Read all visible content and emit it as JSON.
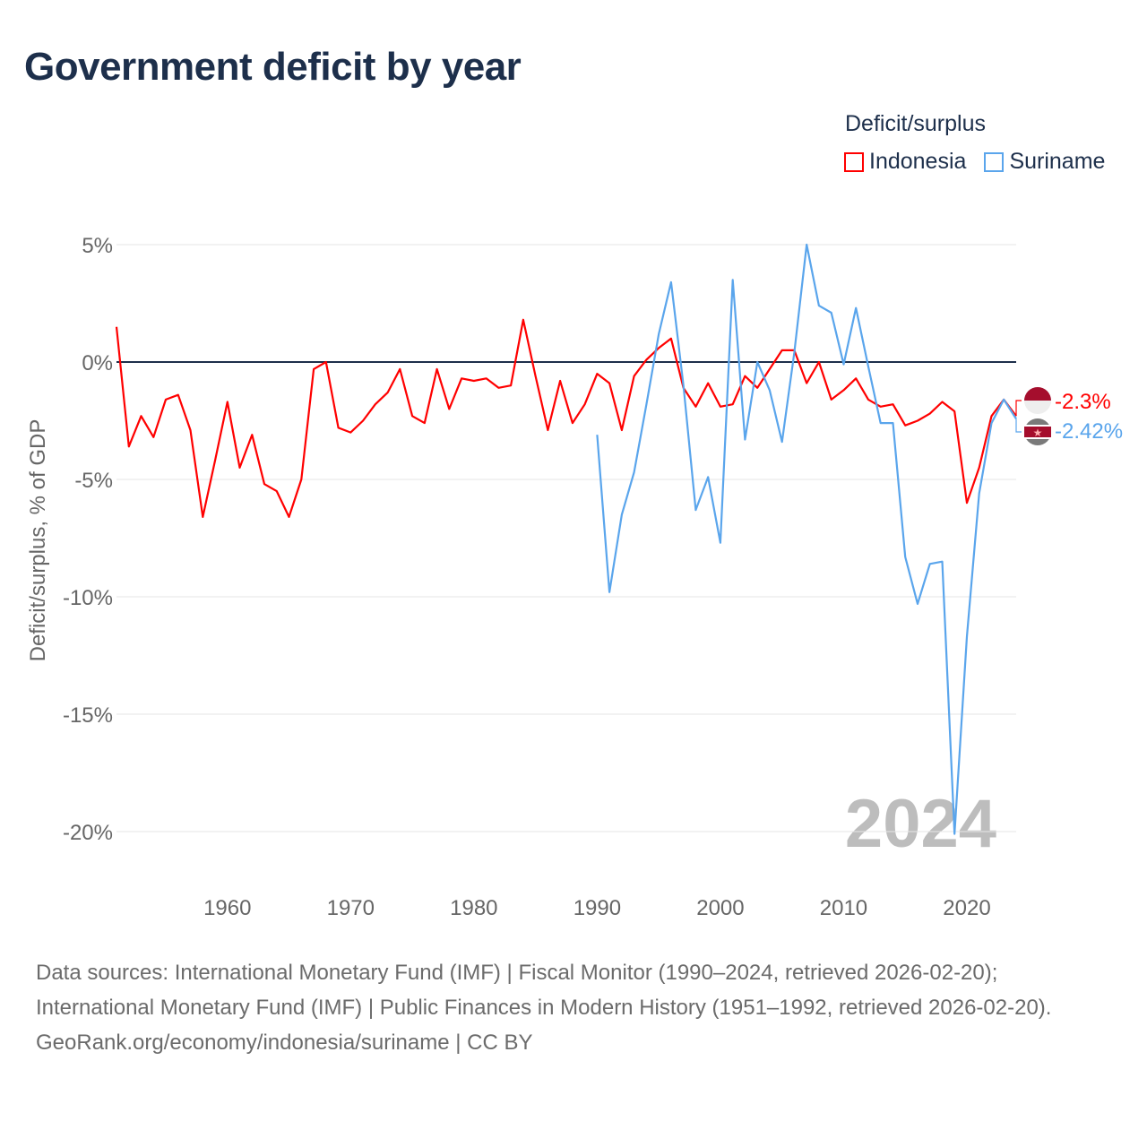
{
  "title": "Government deficit by year",
  "legend": {
    "title": "Deficit/surplus",
    "items": [
      {
        "label": "Indonesia",
        "color": "#ff0000"
      },
      {
        "label": "Suriname",
        "color": "#5aa5ec"
      }
    ]
  },
  "chart_data": {
    "type": "line",
    "title": "Government deficit by year",
    "xlabel": "",
    "ylabel": "Deficit/surplus, % of GDP",
    "xlim": [
      1951,
      2024
    ],
    "ylim": [
      -20,
      5
    ],
    "x_ticks": [
      "1960",
      "1970",
      "1980",
      "1990",
      "2000",
      "2010",
      "2020"
    ],
    "y_ticks": [
      {
        "v": 5,
        "label": "5%"
      },
      {
        "v": 0,
        "label": "0%"
      },
      {
        "v": -5,
        "label": "-5%"
      },
      {
        "v": -10,
        "label": "-10%"
      },
      {
        "v": -15,
        "label": "-15%"
      },
      {
        "v": -20,
        "label": "-20%"
      }
    ],
    "grid": true,
    "legend_position": "top-right",
    "watermark_year": "2024",
    "series": [
      {
        "name": "Indonesia",
        "color": "#ff0000",
        "end_label": "-2.3%",
        "start_year": 1951,
        "values": [
          1.5,
          -3.6,
          -2.3,
          -3.2,
          -1.6,
          -1.4,
          -2.9,
          -6.6,
          -4.2,
          -1.7,
          -4.5,
          -3.1,
          -5.2,
          -5.5,
          -6.6,
          -5.0,
          -0.3,
          0.0,
          -2.8,
          -3.0,
          -2.5,
          -1.8,
          -1.3,
          -0.3,
          -2.3,
          -2.6,
          -0.3,
          -2.0,
          -0.7,
          -0.8,
          -0.7,
          -1.1,
          -1.0,
          1.8,
          -0.6,
          -2.9,
          -0.8,
          -2.6,
          -1.8,
          -0.5,
          -0.9,
          -2.9,
          -0.6,
          0.1,
          0.6,
          1.0,
          -1.1,
          -1.9,
          -0.9,
          -1.9,
          -1.8,
          -0.6,
          -1.1,
          -0.3,
          0.5,
          0.5,
          -0.9,
          0.0,
          -1.6,
          -1.2,
          -0.7,
          -1.6,
          -1.9,
          -1.8,
          -2.7,
          -2.5,
          -2.2,
          -1.7,
          -2.1,
          -6.0,
          -4.5,
          -2.3,
          -1.6,
          -2.3
        ]
      },
      {
        "name": "Suriname",
        "color": "#5aa5ec",
        "end_label": "-2.42%",
        "start_year": 1990,
        "values": [
          -3.1,
          -9.8,
          -6.5,
          -4.7,
          -1.8,
          1.2,
          3.4,
          -1.0,
          -6.3,
          -4.9,
          -7.7,
          3.5,
          -3.3,
          0.0,
          -1.2,
          -3.4,
          0.4,
          5.0,
          2.4,
          2.1,
          -0.1,
          2.3,
          -0.2,
          -2.6,
          -2.6,
          -8.3,
          -10.3,
          -8.6,
          -8.5,
          -20.1,
          -11.7,
          -5.6,
          -2.6,
          -1.6,
          -2.42
        ]
      }
    ]
  },
  "footer": {
    "sources": "Data sources: International Monetary Fund (IMF) | Fiscal Monitor (1990–2024, retrieved 2026-02-20); International Monetary Fund (IMF) | Public Finances in Modern History (1951–1992, retrieved 2026-02-20).",
    "link": "GeoRank.org/economy/indonesia/suriname | CC BY"
  }
}
